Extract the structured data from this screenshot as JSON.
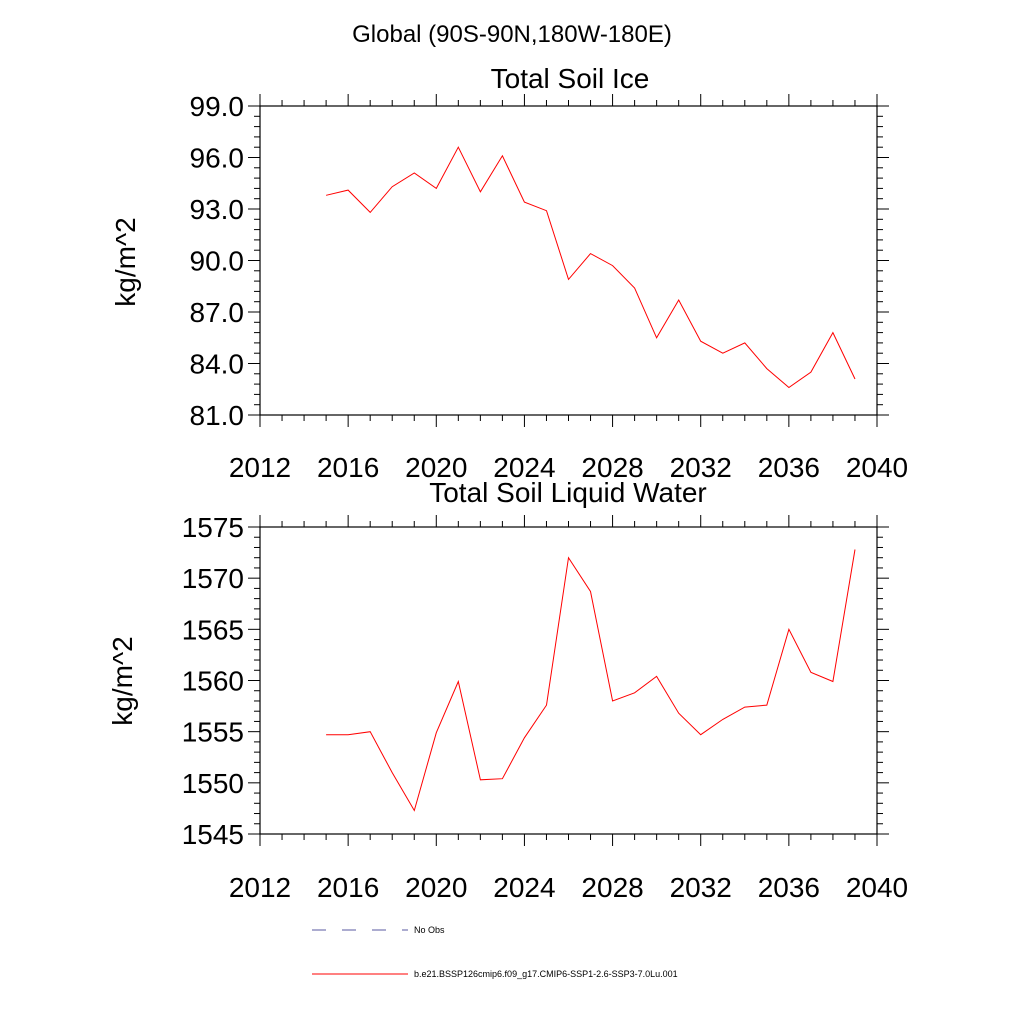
{
  "header": {
    "title": "Global (90S-90N,180W-180E)"
  },
  "colors": {
    "series": "#ff0000",
    "obs": "#5a5aa0",
    "axis": "#000000"
  },
  "legend": {
    "obs_label": "No Obs",
    "series_label": "b.e21.BSSP126cmip6.f09_g17.CMIP6-SSP1-2.6-SSP3-7.0Lu.001"
  },
  "chart_data": [
    {
      "type": "line",
      "title": "Total Soil Ice",
      "ylabel": "kg/m^2",
      "xlabel": "",
      "xlim": [
        2012,
        2040
      ],
      "ylim": [
        81,
        99
      ],
      "xticks": [
        2012,
        2016,
        2020,
        2024,
        2028,
        2032,
        2036,
        2040
      ],
      "xtick_labels": [
        "2012",
        "2016",
        "2020",
        "2024",
        "2028",
        "2032",
        "2036",
        "2040"
      ],
      "yticks": [
        81,
        84,
        87,
        90,
        93,
        96,
        99
      ],
      "ytick_labels": [
        "81.0",
        "84.0",
        "87.0",
        "90.0",
        "93.0",
        "96.0",
        "99.0"
      ],
      "x": [
        2015,
        2016,
        2017,
        2018,
        2019,
        2020,
        2021,
        2022,
        2023,
        2024,
        2025,
        2026,
        2027,
        2028,
        2029,
        2030,
        2031,
        2032,
        2033,
        2034,
        2035,
        2036,
        2037,
        2038,
        2039
      ],
      "series": [
        {
          "name": "b.e21.BSSP126cmip6.f09_g17.CMIP6-SSP1-2.6-SSP3-7.0Lu.001",
          "values": [
            93.8,
            94.1,
            92.8,
            94.3,
            95.1,
            94.2,
            96.6,
            94.0,
            96.1,
            93.4,
            92.9,
            88.9,
            90.4,
            89.7,
            88.4,
            85.5,
            87.7,
            85.3,
            84.6,
            85.2,
            83.7,
            82.6,
            83.5,
            85.8,
            83.1
          ]
        }
      ],
      "grid": false
    },
    {
      "type": "line",
      "title": "Total Soil Liquid Water",
      "ylabel": "kg/m^2",
      "xlabel": "",
      "xlim": [
        2012,
        2040
      ],
      "ylim": [
        1545,
        1575
      ],
      "xticks": [
        2012,
        2016,
        2020,
        2024,
        2028,
        2032,
        2036,
        2040
      ],
      "xtick_labels": [
        "2012",
        "2016",
        "2020",
        "2024",
        "2028",
        "2032",
        "2036",
        "2040"
      ],
      "yticks": [
        1545,
        1550,
        1555,
        1560,
        1565,
        1570,
        1575
      ],
      "ytick_labels": [
        "1545",
        "1550",
        "1555",
        "1560",
        "1565",
        "1570",
        "1575"
      ],
      "x": [
        2015,
        2016,
        2017,
        2018,
        2019,
        2020,
        2021,
        2022,
        2023,
        2024,
        2025,
        2026,
        2027,
        2028,
        2029,
        2030,
        2031,
        2032,
        2033,
        2034,
        2035,
        2036,
        2037,
        2038,
        2039
      ],
      "series": [
        {
          "name": "b.e21.BSSP126cmip6.f09_g17.CMIP6-SSP1-2.6-SSP3-7.0Lu.001",
          "values": [
            1554.7,
            1554.7,
            1555.0,
            1551.0,
            1547.3,
            1554.9,
            1559.9,
            1550.3,
            1550.4,
            1554.4,
            1557.6,
            1572.0,
            1568.7,
            1558.0,
            1558.8,
            1560.4,
            1556.8,
            1554.7,
            1556.2,
            1557.4,
            1557.6,
            1565.0,
            1560.8,
            1559.9,
            1572.8
          ]
        }
      ],
      "grid": false
    }
  ]
}
